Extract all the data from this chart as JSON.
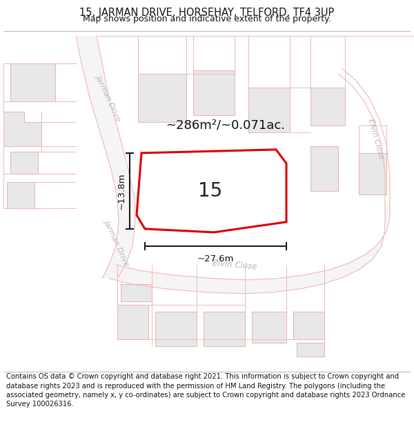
{
  "title_line1": "15, JARMAN DRIVE, HORSEHAY, TELFORD, TF4 3UP",
  "title_line2": "Map shows position and indicative extent of the property.",
  "footer_text": "Contains OS data © Crown copyright and database right 2021. This information is subject to Crown copyright and database rights 2023 and is reproduced with the permission of HM Land Registry. The polygons (including the associated geometry, namely x, y co-ordinates) are subject to Crown copyright and database rights 2023 Ordnance Survey 100026316.",
  "area_label": "~286m²/~0.071ac.",
  "width_label": "~27.6m",
  "height_label": "~13.8m",
  "plot_number": "15",
  "bg": "#ffffff",
  "building_fill": "#e8e8e8",
  "building_edge": "#e8b8b8",
  "road_line": "#f0b8b8",
  "plot_edge": "#dd0000",
  "dim_color": "#1a1a1a",
  "street_color": "#b8b8b8",
  "title_fs": 10.5,
  "sub_fs": 9,
  "footer_fs": 7.2
}
